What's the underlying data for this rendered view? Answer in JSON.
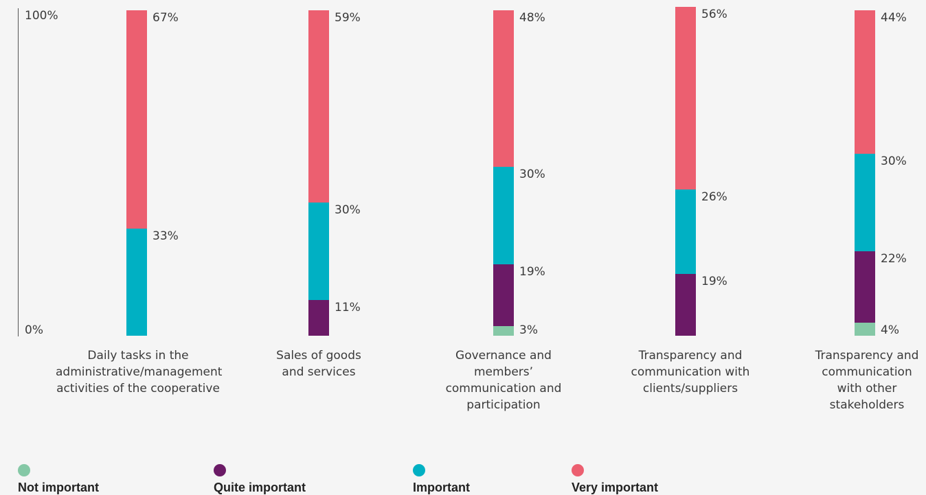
{
  "chart_data": {
    "type": "bar",
    "stacked": true,
    "ylim": [
      0,
      100
    ],
    "y_ticks": [
      "0%",
      "100%"
    ],
    "categories": [
      "Daily tasks in the administrative/management activities of the cooperative",
      "Sales of goods and services",
      "Governance and members’ communication and participation",
      "Transparency and communication with clients/suppliers",
      "Transparency and communication with other stakeholders"
    ],
    "series": [
      {
        "name": "Not important",
        "color": "#85c8a6",
        "values": [
          0,
          0,
          3,
          0,
          4
        ]
      },
      {
        "name": "Quite important",
        "color": "#6b1a66",
        "values": [
          0,
          11,
          19,
          19,
          22
        ]
      },
      {
        "name": "Important",
        "color": "#00b0c3",
        "values": [
          33,
          30,
          30,
          26,
          30
        ]
      },
      {
        "name": "Very important",
        "color": "#ec5f70",
        "values": [
          67,
          59,
          48,
          56,
          44
        ]
      }
    ],
    "value_labels": [
      [
        "",
        "",
        "33%",
        "67%"
      ],
      [
        "",
        "11%",
        "30%",
        "59%"
      ],
      [
        "3%",
        "19%",
        "30%",
        "48%"
      ],
      [
        "",
        "19%",
        "26%",
        "56%"
      ],
      [
        "4%",
        "22%",
        "30%",
        "44%"
      ]
    ],
    "legend_position": "bottom"
  }
}
